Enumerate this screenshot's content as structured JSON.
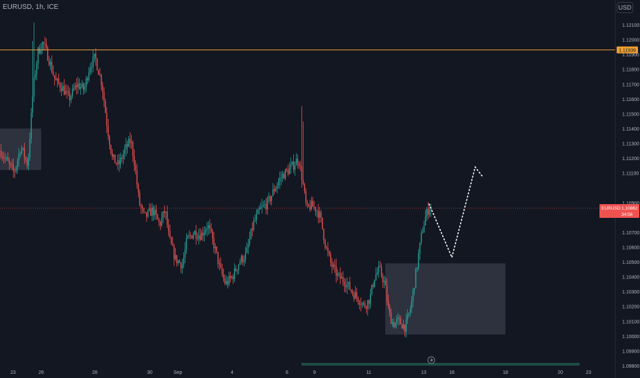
{
  "header": {
    "symbol": "EURUSD",
    "interval": "1h",
    "exchange": "ICE",
    "title": "EURUSD, 1h, ICE",
    "currency": "USD"
  },
  "colors": {
    "background": "#131722",
    "up": "#26a69a",
    "down": "#ef5350",
    "axis_text": "#b2b5be",
    "resistance_line": "#f0a030",
    "last_price_line": "#ef5350",
    "zone_fill": "#3a3d4a",
    "projection": "#ffffff",
    "volume_bar": "#1e4d45"
  },
  "chart_data": {
    "type": "candlestick",
    "price_axis": {
      "min": 1.098,
      "max": 1.123,
      "ticks": [
        "1.12100",
        "1.12000",
        "1.11900",
        "1.11800",
        "1.11700",
        "1.11600",
        "1.11500",
        "1.11400",
        "1.11300",
        "1.11200",
        "1.11100",
        "1.10900",
        "1.10700",
        "1.10600",
        "1.10500",
        "1.10400",
        "1.10300",
        "1.10200",
        "1.10100",
        "1.10000",
        "1.09900",
        "1.09800"
      ]
    },
    "time_axis": {
      "labels": [
        "23",
        "26",
        "28",
        "30",
        "Sep",
        "4",
        "6",
        "9",
        "11",
        "13",
        "16",
        "18",
        "20",
        "23"
      ]
    },
    "price_path": [
      [
        0,
        1.1125
      ],
      [
        20,
        1.111
      ],
      [
        30,
        1.1128
      ],
      [
        40,
        1.1115
      ],
      [
        48,
        1.1168
      ],
      [
        55,
        1.1192
      ],
      [
        62,
        1.1198
      ],
      [
        70,
        1.1188
      ],
      [
        80,
        1.1172
      ],
      [
        90,
        1.1168
      ],
      [
        100,
        1.116
      ],
      [
        112,
        1.117
      ],
      [
        122,
        1.1166
      ],
      [
        130,
        1.1182
      ],
      [
        138,
        1.1188
      ],
      [
        148,
        1.117
      ],
      [
        156,
        1.114
      ],
      [
        163,
        1.112
      ],
      [
        172,
        1.1115
      ],
      [
        182,
        1.1126
      ],
      [
        190,
        1.1132
      ],
      [
        196,
        1.1115
      ],
      [
        202,
        1.109
      ],
      [
        210,
        1.108
      ],
      [
        222,
        1.1085
      ],
      [
        232,
        1.1075
      ],
      [
        240,
        1.1085
      ],
      [
        246,
        1.1065
      ],
      [
        255,
        1.1052
      ],
      [
        265,
        1.1048
      ],
      [
        272,
        1.1065
      ],
      [
        282,
        1.107
      ],
      [
        292,
        1.1068
      ],
      [
        302,
        1.1075
      ],
      [
        312,
        1.106
      ],
      [
        320,
        1.1045
      ],
      [
        328,
        1.1035
      ],
      [
        338,
        1.104
      ],
      [
        348,
        1.105
      ],
      [
        358,
        1.1055
      ],
      [
        368,
        1.1075
      ],
      [
        378,
        1.1085
      ],
      [
        390,
        1.109
      ],
      [
        400,
        1.11
      ],
      [
        410,
        1.1108
      ],
      [
        420,
        1.1112
      ],
      [
        428,
        1.1116
      ],
      [
        434,
        1.112
      ],
      [
        440,
        1.1105
      ],
      [
        446,
        1.1085
      ],
      [
        452,
        1.1088
      ],
      [
        460,
        1.1086
      ],
      [
        466,
        1.108
      ],
      [
        474,
        1.106
      ],
      [
        482,
        1.1048
      ],
      [
        492,
        1.104
      ],
      [
        502,
        1.1037
      ],
      [
        512,
        1.103
      ],
      [
        522,
        1.1025
      ],
      [
        530,
        1.102
      ],
      [
        538,
        1.1025
      ],
      [
        545,
        1.104
      ],
      [
        552,
        1.1045
      ],
      [
        560,
        1.1035
      ],
      [
        566,
        1.1015
      ],
      [
        572,
        1.1008
      ],
      [
        580,
        1.101
      ],
      [
        590,
        1.1006
      ],
      [
        598,
        1.102
      ],
      [
        606,
        1.1045
      ],
      [
        614,
        1.107
      ],
      [
        620,
        1.1082
      ],
      [
        626,
        1.1088
      ],
      [
        628,
        1.1086
      ]
    ],
    "resistance_line": {
      "price": 1.1193,
      "label": "1.11939"
    },
    "last_price": {
      "symbol": "EURUSD",
      "price": 1.10862,
      "price_label": "1.10862",
      "countdown": "34:56"
    },
    "zones": [
      {
        "from_price": 1.114,
        "to_price": 1.1112
      },
      {
        "from_price": 1.1049,
        "to_price": 1.1001
      }
    ],
    "projection": [
      {
        "price": 1.1089
      },
      {
        "price": 1.1053
      },
      {
        "price": 1.1114
      },
      {
        "price": 1.1108
      }
    ]
  }
}
